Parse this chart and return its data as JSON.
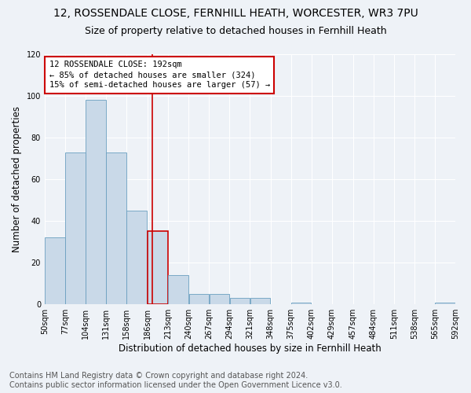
{
  "title1": "12, ROSSENDALE CLOSE, FERNHILL HEATH, WORCESTER, WR3 7PU",
  "title2": "Size of property relative to detached houses in Fernhill Heath",
  "xlabel": "Distribution of detached houses by size in Fernhill Heath",
  "ylabel": "Number of detached properties",
  "annotation_line1": "12 ROSSENDALE CLOSE: 192sqm",
  "annotation_line2": "← 85% of detached houses are smaller (324)",
  "annotation_line3": "15% of semi-detached houses are larger (57) →",
  "bin_edges": [
    50,
    77,
    104,
    131,
    158,
    186,
    213,
    240,
    267,
    294,
    321,
    348,
    375,
    402,
    429,
    457,
    484,
    511,
    538,
    565,
    592
  ],
  "bin_labels": [
    "50sqm",
    "77sqm",
    "104sqm",
    "131sqm",
    "158sqm",
    "186sqm",
    "213sqm",
    "240sqm",
    "267sqm",
    "294sqm",
    "321sqm",
    "348sqm",
    "375sqm",
    "402sqm",
    "429sqm",
    "457sqm",
    "484sqm",
    "511sqm",
    "538sqm",
    "565sqm",
    "592sqm"
  ],
  "bar_heights": [
    32,
    73,
    98,
    73,
    45,
    35,
    14,
    5,
    5,
    3,
    3,
    0,
    1,
    0,
    0,
    0,
    0,
    0,
    0,
    1
  ],
  "bar_color": "#c9d9e8",
  "bar_edge_color": "#6a9fc0",
  "highlight_bar_index": 5,
  "highlight_bar_edge_color": "#cc0000",
  "vline_x": 192,
  "vline_color": "#cc0000",
  "annotation_box_color": "#cc0000",
  "footer_line1": "Contains HM Land Registry data © Crown copyright and database right 2024.",
  "footer_line2": "Contains public sector information licensed under the Open Government Licence v3.0.",
  "ylim": [
    0,
    120
  ],
  "yticks": [
    0,
    20,
    40,
    60,
    80,
    100,
    120
  ],
  "bg_color": "#eef2f7",
  "grid_color": "#ffffff",
  "title_fontsize": 10,
  "subtitle_fontsize": 9,
  "axis_fontsize": 8.5,
  "tick_fontsize": 7,
  "footer_fontsize": 7
}
